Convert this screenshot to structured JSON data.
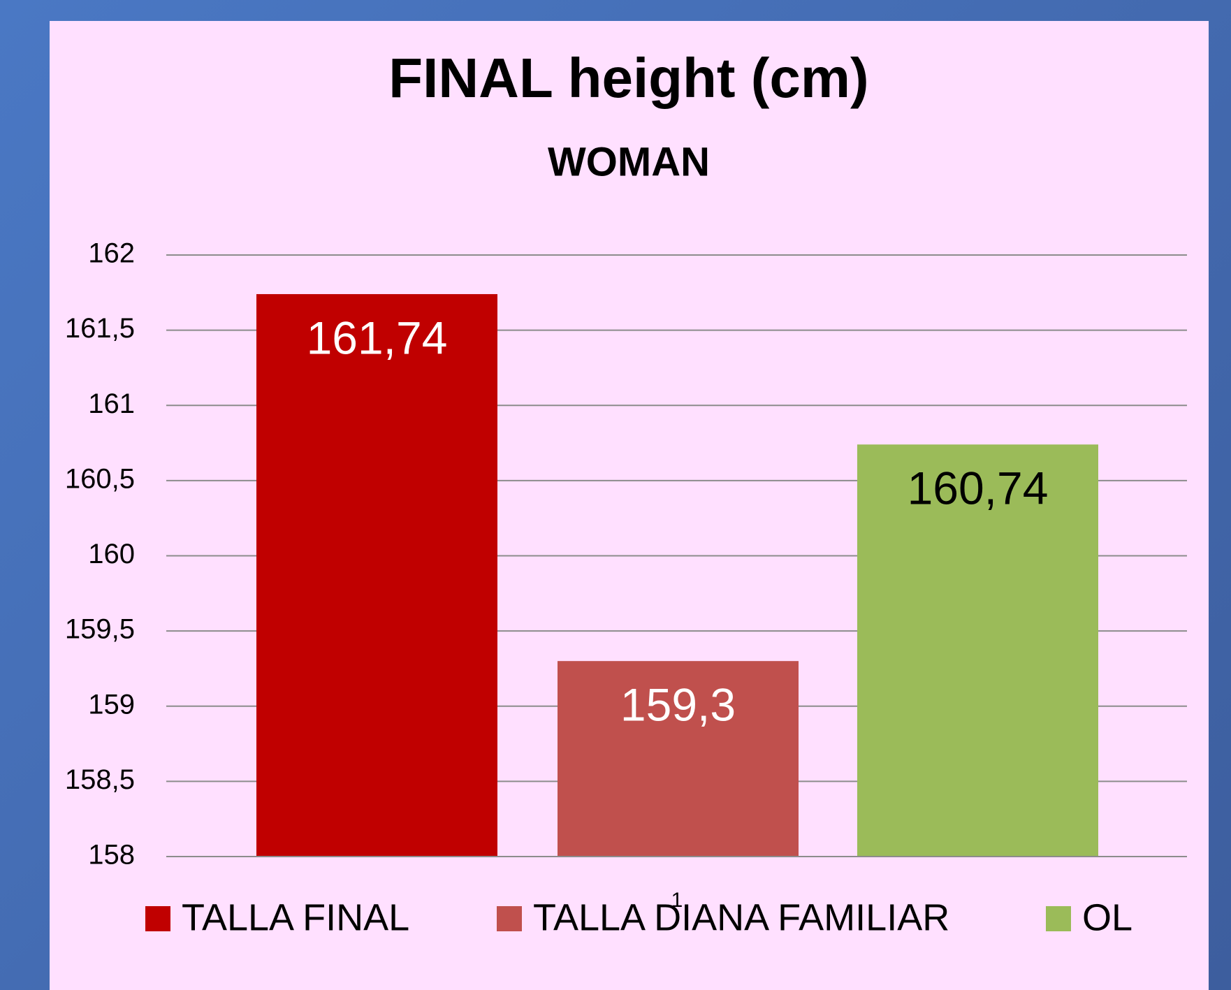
{
  "chart_data": {
    "type": "bar",
    "title": "FINAL height (cm)",
    "subtitle": "WOMAN",
    "series": [
      {
        "name": "TALLA FINAL",
        "color": "#c00000",
        "label_color": "#ffffff",
        "values": [
          161.74
        ],
        "value_labels": [
          "161,74"
        ]
      },
      {
        "name": "TALLA DIANA FAMILIAR",
        "color": "#c0504d",
        "label_color": "#ffffff",
        "values": [
          159.3
        ],
        "value_labels": [
          "159,3"
        ]
      },
      {
        "name": "OL",
        "color": "#9bbb59",
        "label_color": "#000000",
        "values": [
          160.74
        ],
        "value_labels": [
          "160,74"
        ]
      }
    ],
    "ylim": [
      158,
      162
    ],
    "yticks": [
      158,
      {
        "value": 158.5,
        "label": "158,5"
      },
      159,
      {
        "value": 159.5,
        "label": "159,5"
      },
      160,
      {
        "value": 160.5,
        "label": "160,5"
      },
      161,
      {
        "value": 161.5,
        "label": "161,5"
      },
      162
    ],
    "grid": true,
    "legend": "bottom",
    "page_number": "1"
  }
}
